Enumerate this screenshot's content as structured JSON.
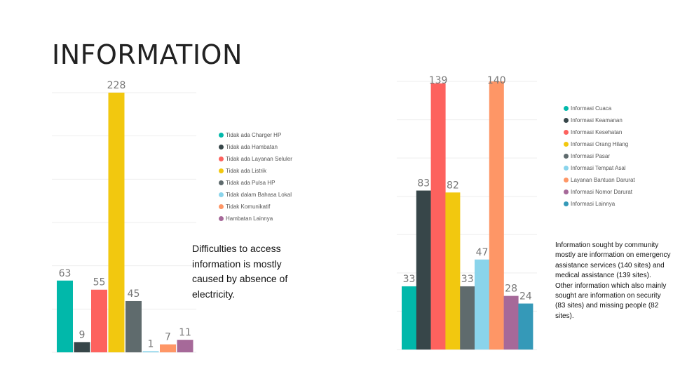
{
  "slide": {
    "title": "INFORMATION",
    "caption_left": "Difficulties to access information is mostly caused by absence of electricity.",
    "caption_right": "Information sought by community mostly are information on emergency assistance services (140 sites) and medical assistance (139 sites).\nOther information which also mainly sought are information on security (83 sites) and missing people (82 sites)."
  },
  "chart_data": [
    {
      "type": "bar",
      "title": "",
      "categories": [
        "Tidak ada Charger HP",
        "Tidak ada Hambatan",
        "Tidak ada Layanan Seluler",
        "Tidak ada Listrik",
        "Tidak ada Pulsa HP",
        "Tidak dalam Bahasa Lokal",
        "Tidak Komunikatif",
        "Hambatan Lainnya"
      ],
      "values": [
        63,
        9,
        55,
        228,
        45,
        1,
        7,
        11
      ],
      "colors": [
        "#01B8AA",
        "#374649",
        "#FD625E",
        "#F2C80F",
        "#5F6B6D",
        "#8AD4EB",
        "#FE9666",
        "#A66999"
      ],
      "ylim": [
        0,
        228
      ],
      "grid": true,
      "legend": "right"
    },
    {
      "type": "bar",
      "title": "",
      "categories": [
        "Informasi Cuaca",
        "Informasi Keamanan",
        "Informasi Kesehatan",
        "Informasi Orang Hilang",
        "Informasi Pasar",
        "Informasi Tempat Asal",
        "Layanan Bantuan Darurat",
        "Informasi Nomor Darurat",
        "Informasi Lainnya"
      ],
      "values": [
        33,
        83,
        139,
        82,
        33,
        47,
        140,
        28,
        24
      ],
      "colors": [
        "#01B8AA",
        "#374649",
        "#FD625E",
        "#F2C80F",
        "#5F6B6D",
        "#8AD4EB",
        "#FE9666",
        "#A66999",
        "#3599B8"
      ],
      "ylim": [
        0,
        140
      ],
      "grid": true,
      "legend": "top-right"
    }
  ]
}
